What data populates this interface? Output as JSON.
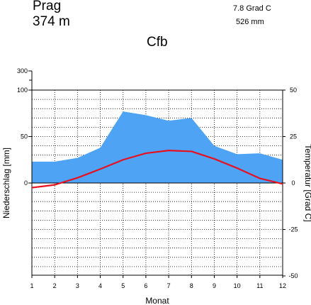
{
  "header": {
    "station": "Prag",
    "altitude": "374  m",
    "mean_temperature": "7.8 Grad C",
    "annual_precipitation": "526 mm",
    "climate_class": "Cfb"
  },
  "chart_data": {
    "type": "area",
    "xlabel": "Monat",
    "ylabel_left": "Niederschlag [mm]",
    "ylabel_right": "Temperatur [Grad C]",
    "x": [
      1,
      2,
      3,
      4,
      5,
      6,
      7,
      8,
      9,
      10,
      11,
      12
    ],
    "x_tick_labels": [
      "1",
      "2",
      "3",
      "4",
      "5",
      "6",
      "7",
      "8",
      "9",
      "10",
      "11",
      "12"
    ],
    "left_axis": {
      "range": [
        -100,
        300
      ],
      "ticks": [
        "300",
        "100",
        "50",
        "0"
      ],
      "scale_break_above": 100
    },
    "right_axis": {
      "range": [
        -50,
        50
      ],
      "ticks": [
        "50",
        "25",
        "0",
        "-25",
        "-50"
      ]
    },
    "grid": true,
    "series": [
      {
        "name": "Niederschlag",
        "kind": "area",
        "color": "#4ea3f5",
        "values": [
          23,
          23,
          27,
          38,
          77,
          73,
          67,
          70,
          40,
          31,
          32,
          25
        ]
      },
      {
        "name": "Temperatur",
        "kind": "line",
        "color": "#e8101e",
        "values": [
          -2.5,
          -1.0,
          2.8,
          7.5,
          12.5,
          16.0,
          17.5,
          17.0,
          13.0,
          8.0,
          2.5,
          -0.5
        ]
      }
    ],
    "colors": {
      "precipitation": "#4ea3f5",
      "temperature": "#e8101e",
      "grid": "#000000"
    }
  }
}
